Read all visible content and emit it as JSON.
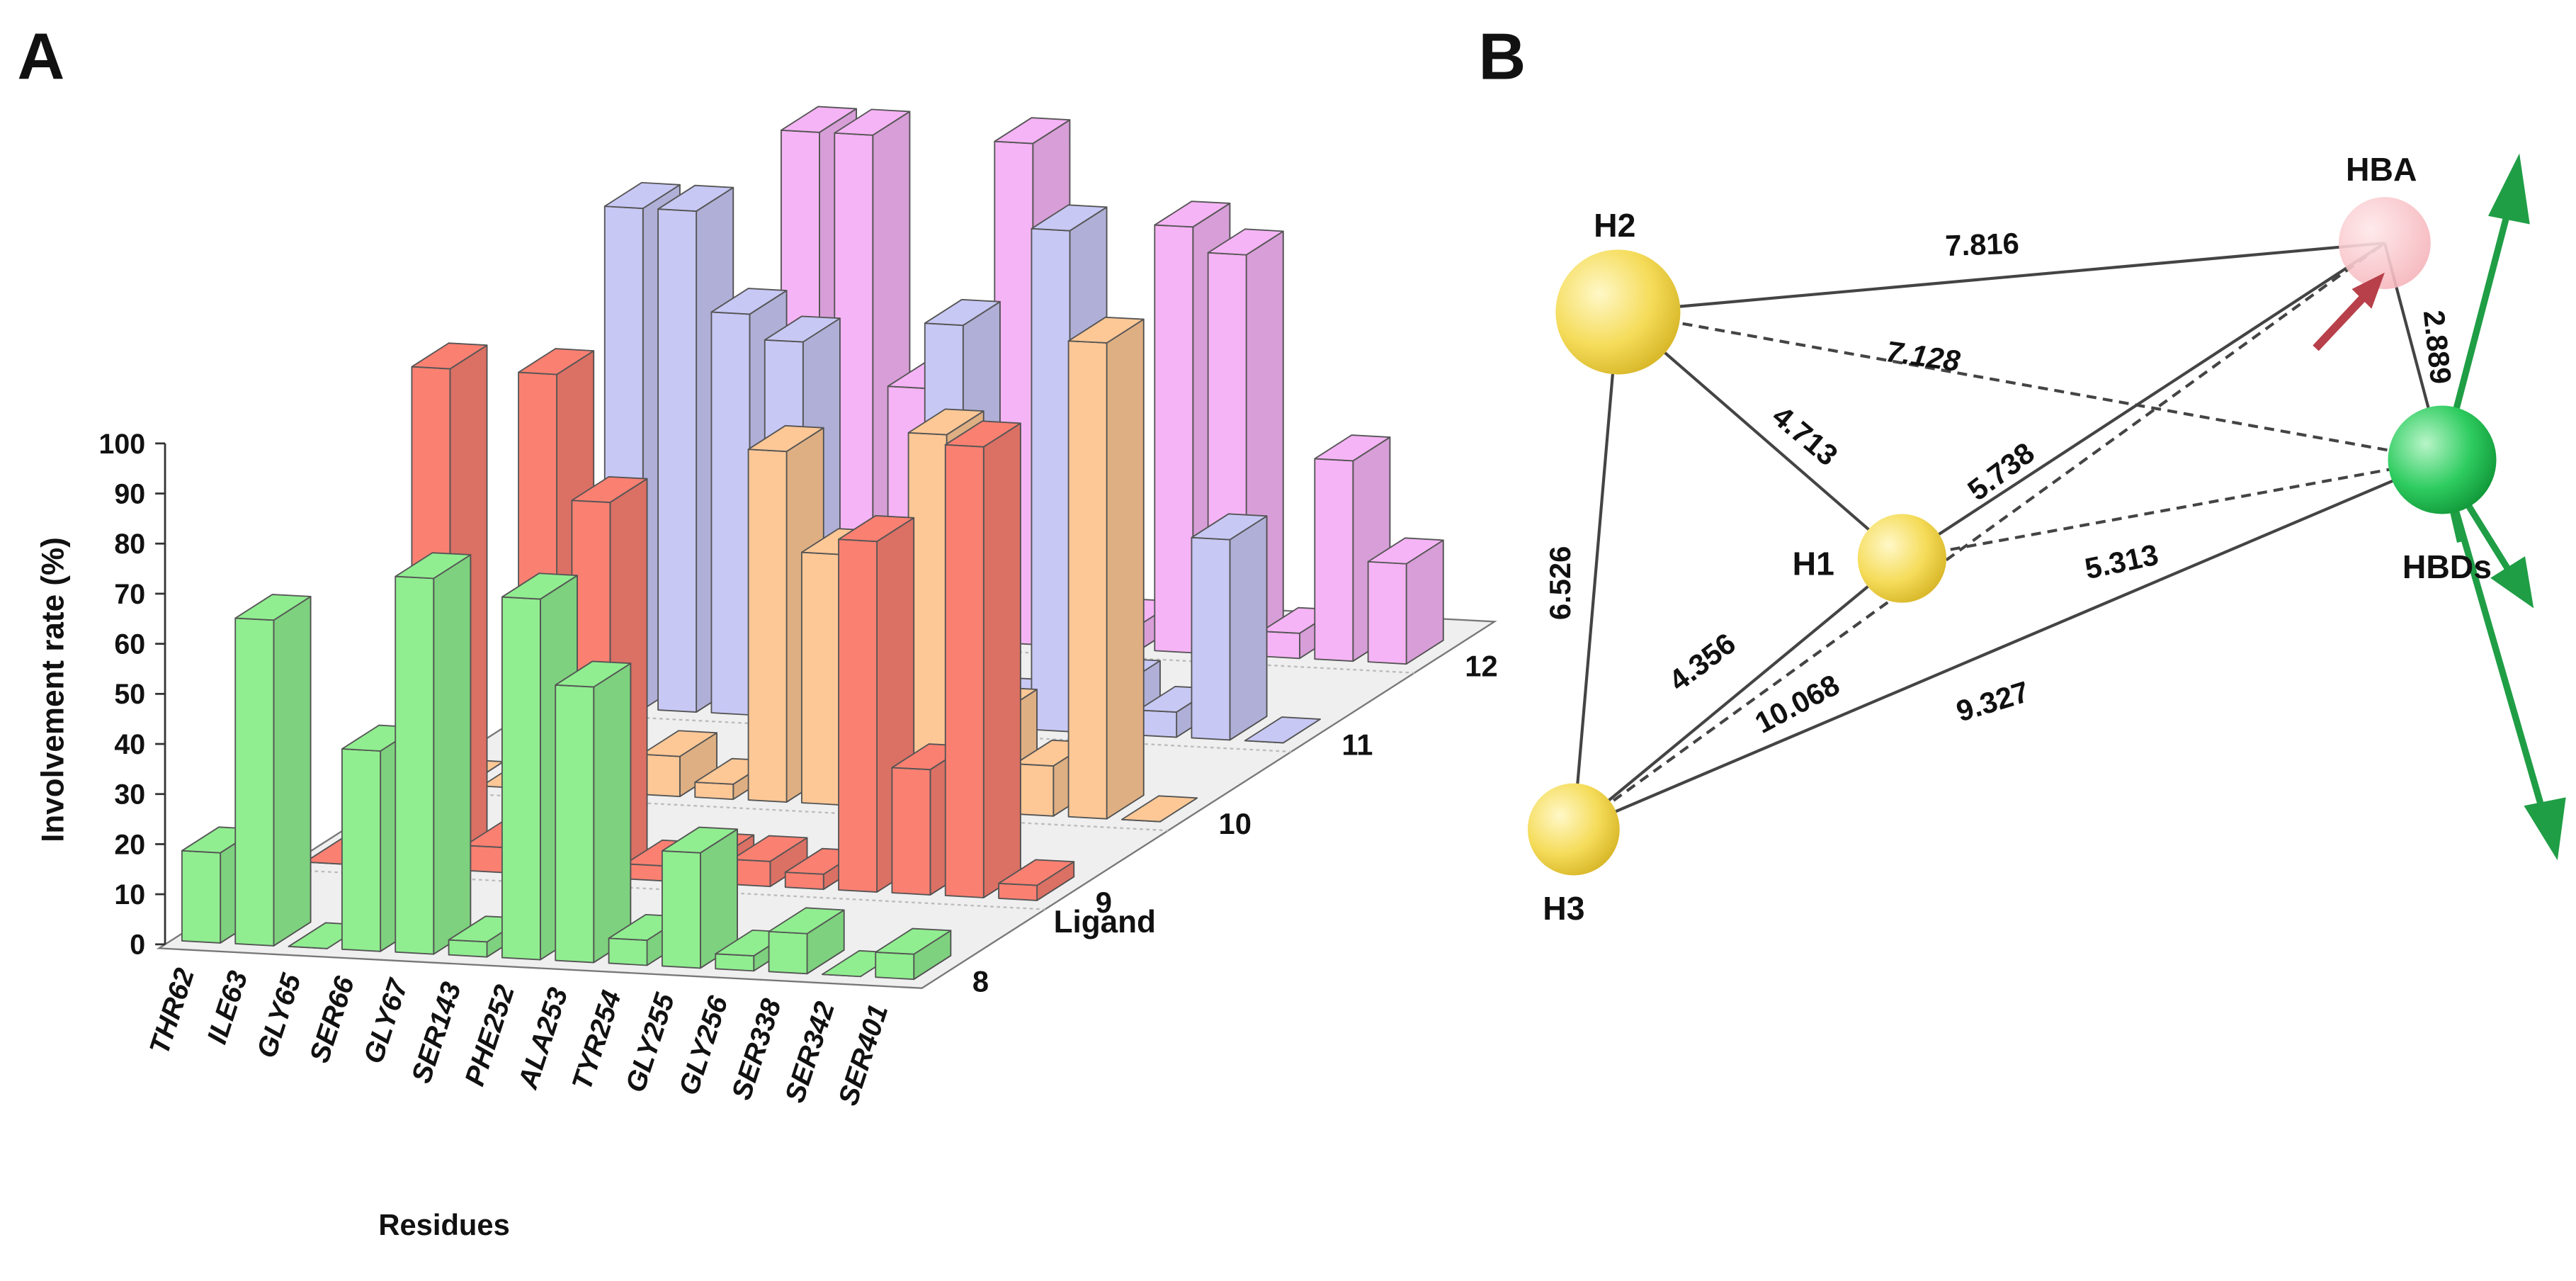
{
  "chart_data": {
    "type": "bar3d",
    "panel_label": "A",
    "ylabel": "Involvement rate (%)",
    "xlabel": "Residues",
    "zlabel": "Ligand",
    "categories": [
      "THR62",
      "ILE63",
      "GLY65",
      "SER66",
      "GLY67",
      "SER143",
      "PHE252",
      "ALA253",
      "TYR254",
      "GLY255",
      "GLY256",
      "SER338",
      "SER342",
      "SER401"
    ],
    "series": [
      {
        "name": "8",
        "color": "#90ee90",
        "values": [
          18,
          65,
          0,
          40,
          75,
          3,
          72,
          55,
          5,
          23,
          3,
          8,
          0,
          5
        ]
      },
      {
        "name": "9",
        "color": "#fa8072",
        "values": [
          0,
          0,
          100,
          5,
          100,
          75,
          3,
          5,
          5,
          3,
          70,
          25,
          90,
          3
        ]
      },
      {
        "name": "10",
        "color": "#fdc896",
        "values": [
          0,
          0,
          5,
          3,
          8,
          3,
          70,
          50,
          40,
          75,
          20,
          10,
          95,
          0
        ]
      },
      {
        "name": "11",
        "color": "#c8c8f5",
        "values": [
          0,
          100,
          100,
          80,
          75,
          10,
          5,
          80,
          5,
          100,
          10,
          5,
          40,
          0
        ]
      },
      {
        "name": "12",
        "color": "#f5b4f5",
        "values": [
          0,
          0,
          100,
          100,
          50,
          30,
          100,
          5,
          5,
          85,
          80,
          5,
          40,
          20
        ]
      }
    ],
    "ylim": [
      0,
      100
    ],
    "yticks": [
      0,
      10,
      20,
      30,
      40,
      50,
      60,
      70,
      80,
      90,
      100
    ]
  },
  "diagram": {
    "panel_label": "B",
    "nodes": [
      {
        "label": "H2"
      },
      {
        "label": "H1"
      },
      {
        "label": "H3"
      },
      {
        "label": "HBA"
      },
      {
        "label": "HBDs"
      }
    ],
    "edges": [
      {
        "from": 0,
        "to": 3,
        "label": "7.816",
        "style": "solid"
      },
      {
        "from": 0,
        "to": 4,
        "label": "7.128",
        "style": "dashed"
      },
      {
        "from": 0,
        "to": 1,
        "label": "4.713",
        "style": "solid"
      },
      {
        "from": 1,
        "to": 3,
        "label": "5.738",
        "style": "solid"
      },
      {
        "from": 1,
        "to": 4,
        "label": "5.313",
        "style": "dashed"
      },
      {
        "from": 0,
        "to": 2,
        "label": "6.526",
        "style": "solid"
      },
      {
        "from": 2,
        "to": 1,
        "label": "4.356",
        "style": "solid"
      },
      {
        "from": 2,
        "to": 3,
        "label": "10.068",
        "style": "dashed"
      },
      {
        "from": 2,
        "to": 4,
        "label": "9.327",
        "style": "solid"
      },
      {
        "from": 3,
        "to": 4,
        "label": "2.889",
        "style": "solid"
      }
    ]
  }
}
